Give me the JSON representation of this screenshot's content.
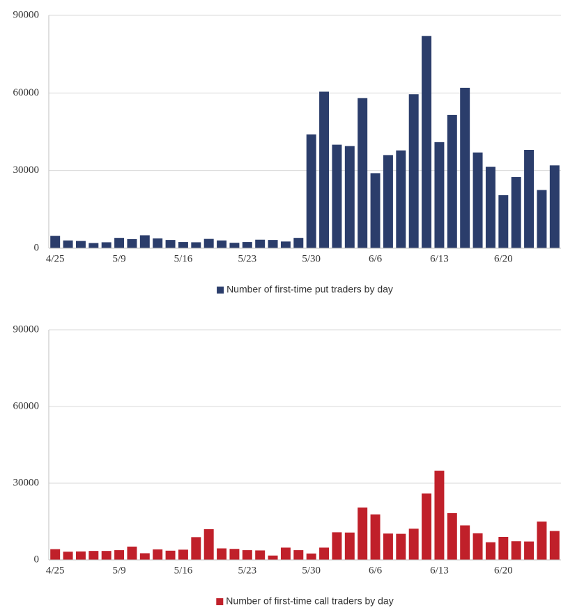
{
  "chart_data": [
    {
      "type": "bar",
      "categories": [
        "4/25",
        null,
        null,
        null,
        null,
        "5/9",
        null,
        null,
        null,
        null,
        "5/16",
        null,
        null,
        null,
        null,
        "5/23",
        null,
        null,
        null,
        null,
        "5/30",
        null,
        null,
        null,
        null,
        "6/6",
        null,
        null,
        null,
        null,
        "6/13",
        null,
        null,
        null,
        null,
        "6/20",
        null,
        null,
        null,
        null
      ],
      "series": [
        {
          "name": "Number of first-time put traders by day",
          "color": "#2b3d6b",
          "values": [
            4800,
            3000,
            2800,
            2000,
            2300,
            4000,
            3500,
            5000,
            3800,
            3200,
            2400,
            2300,
            3600,
            3000,
            2100,
            2400,
            3300,
            3200,
            2600,
            4000,
            44000,
            60500,
            40000,
            39500,
            58000,
            29000,
            36000,
            37800,
            59500,
            82000,
            41000,
            51500,
            62000,
            37000,
            31500,
            20500,
            27500,
            38000,
            22500,
            32000
          ]
        }
      ],
      "ylim": [
        0,
        90000
      ],
      "yticks": [
        0,
        30000,
        60000,
        90000
      ],
      "grid": true,
      "legend": "bottom"
    },
    {
      "type": "bar",
      "categories": [
        "4/25",
        null,
        null,
        null,
        null,
        "5/9",
        null,
        null,
        null,
        null,
        "5/16",
        null,
        null,
        null,
        null,
        "5/23",
        null,
        null,
        null,
        null,
        "5/30",
        null,
        null,
        null,
        null,
        "6/6",
        null,
        null,
        null,
        null,
        "6/13",
        null,
        null,
        null,
        null,
        "6/20",
        null,
        null,
        null,
        null
      ],
      "series": [
        {
          "name": "Number of first-time call traders by day",
          "color": "#c0202a",
          "values": [
            4200,
            3200,
            3300,
            3500,
            3500,
            3800,
            5200,
            2600,
            4100,
            3600,
            4000,
            8900,
            12000,
            4500,
            4300,
            3800,
            3700,
            1700,
            4800,
            3800,
            2500,
            4800,
            10800,
            10700,
            20500,
            17800,
            10300,
            10200,
            12200,
            26000,
            34900,
            18300,
            13500,
            10400,
            6900,
            9000,
            7300,
            7200,
            15000,
            11300
          ]
        }
      ],
      "ylim": [
        0,
        90000
      ],
      "yticks": [
        0,
        30000,
        60000,
        90000
      ],
      "grid": true,
      "legend": "bottom"
    }
  ]
}
